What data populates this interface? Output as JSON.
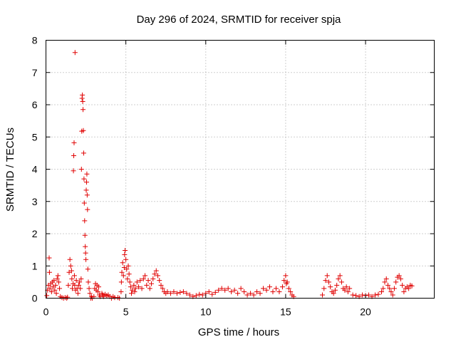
{
  "chart_data": {
    "type": "scatter",
    "title": "Day 296 of 2024, SRMTID for receiver spja",
    "xlabel": "GPS time / hours",
    "ylabel": "SRMTID / TECUs",
    "xlim": [
      0,
      24.3
    ],
    "ylim": [
      0,
      8
    ],
    "xticks": [
      0,
      5,
      10,
      15,
      20
    ],
    "xtick_labels": [
      "0",
      "5",
      "10",
      "15",
      "20"
    ],
    "yticks": [
      0,
      1,
      2,
      3,
      4,
      5,
      6,
      7,
      8
    ],
    "ytick_labels": [
      "0",
      "1",
      "2",
      "3",
      "4",
      "5",
      "6",
      "7",
      "8"
    ],
    "grid": true,
    "marker": "+",
    "color": "#e00000",
    "series": [
      {
        "name": "SRMTID",
        "points": [
          [
            0.05,
            0.08
          ],
          [
            0.1,
            0.25
          ],
          [
            0.15,
            0.4
          ],
          [
            0.2,
            1.25
          ],
          [
            0.22,
            0.8
          ],
          [
            0.25,
            0.3
          ],
          [
            0.3,
            0.45
          ],
          [
            0.35,
            0.2
          ],
          [
            0.4,
            0.5
          ],
          [
            0.45,
            0.35
          ],
          [
            0.5,
            0.55
          ],
          [
            0.55,
            0.25
          ],
          [
            0.6,
            0.4
          ],
          [
            0.65,
            0.15
          ],
          [
            0.7,
            0.6
          ],
          [
            0.75,
            0.7
          ],
          [
            0.8,
            0.5
          ],
          [
            0.85,
            0.3
          ],
          [
            0.9,
            0.05
          ],
          [
            1.0,
            0.02
          ],
          [
            1.1,
            0.0
          ],
          [
            1.2,
            0.02
          ],
          [
            1.3,
            0.0
          ],
          [
            1.35,
            0.03
          ],
          [
            1.4,
            0.4
          ],
          [
            1.45,
            0.8
          ],
          [
            1.5,
            1.2
          ],
          [
            1.55,
            1.0
          ],
          [
            1.6,
            0.85
          ],
          [
            1.62,
            0.6
          ],
          [
            1.65,
            0.3
          ],
          [
            1.7,
            0.45
          ],
          [
            1.72,
            3.95
          ],
          [
            1.74,
            4.42
          ],
          [
            1.76,
            4.82
          ],
          [
            1.78,
            0.7
          ],
          [
            1.8,
            0.4
          ],
          [
            1.82,
            7.62
          ],
          [
            1.85,
            0.25
          ],
          [
            1.9,
            0.55
          ],
          [
            1.95,
            0.3
          ],
          [
            2.0,
            0.15
          ],
          [
            2.05,
            0.4
          ],
          [
            2.1,
            0.5
          ],
          [
            2.15,
            0.3
          ],
          [
            2.2,
            0.6
          ],
          [
            2.22,
            4.0
          ],
          [
            2.24,
            5.18
          ],
          [
            2.26,
            6.2
          ],
          [
            2.28,
            6.3
          ],
          [
            2.3,
            6.1
          ],
          [
            2.32,
            5.85
          ],
          [
            2.34,
            5.2
          ],
          [
            2.36,
            4.5
          ],
          [
            2.38,
            3.7
          ],
          [
            2.4,
            2.95
          ],
          [
            2.42,
            2.4
          ],
          [
            2.44,
            1.95
          ],
          [
            2.46,
            1.6
          ],
          [
            2.48,
            1.4
          ],
          [
            2.5,
            1.2
          ],
          [
            2.52,
            3.35
          ],
          [
            2.54,
            3.6
          ],
          [
            2.56,
            3.85
          ],
          [
            2.58,
            3.2
          ],
          [
            2.6,
            2.75
          ],
          [
            2.62,
            0.9
          ],
          [
            2.65,
            0.5
          ],
          [
            2.7,
            0.3
          ],
          [
            2.75,
            0.15
          ],
          [
            2.8,
            0.0
          ],
          [
            2.85,
            0.05
          ],
          [
            2.9,
            0.0
          ],
          [
            3.0,
            0.05
          ],
          [
            3.05,
            0.3
          ],
          [
            3.1,
            0.45
          ],
          [
            3.15,
            0.25
          ],
          [
            3.2,
            0.4
          ],
          [
            3.25,
            0.2
          ],
          [
            3.3,
            0.35
          ],
          [
            3.35,
            0.1
          ],
          [
            3.4,
            0.05
          ],
          [
            3.5,
            0.15
          ],
          [
            3.55,
            0.1
          ],
          [
            3.6,
            0.05
          ],
          [
            3.7,
            0.12
          ],
          [
            3.8,
            0.08
          ],
          [
            3.9,
            0.1
          ],
          [
            4.0,
            0.05
          ],
          [
            4.1,
            0.0
          ],
          [
            4.2,
            0.05
          ],
          [
            4.3,
            0.02
          ],
          [
            4.5,
            0.02
          ],
          [
            4.6,
            0.0
          ],
          [
            4.7,
            0.2
          ],
          [
            4.72,
            0.5
          ],
          [
            4.75,
            0.8
          ],
          [
            4.8,
            1.1
          ],
          [
            4.85,
            0.7
          ],
          [
            4.9,
            0.95
          ],
          [
            4.92,
            1.35
          ],
          [
            4.95,
            1.48
          ],
          [
            5.0,
            1.2
          ],
          [
            5.05,
            0.9
          ],
          [
            5.1,
            0.6
          ],
          [
            5.15,
            1.0
          ],
          [
            5.2,
            0.75
          ],
          [
            5.25,
            0.5
          ],
          [
            5.3,
            0.35
          ],
          [
            5.35,
            0.15
          ],
          [
            5.4,
            0.25
          ],
          [
            5.5,
            0.4
          ],
          [
            5.55,
            0.2
          ],
          [
            5.6,
            0.3
          ],
          [
            5.7,
            0.5
          ],
          [
            5.8,
            0.35
          ],
          [
            5.9,
            0.55
          ],
          [
            6.0,
            0.3
          ],
          [
            6.1,
            0.6
          ],
          [
            6.2,
            0.7
          ],
          [
            6.3,
            0.4
          ],
          [
            6.4,
            0.55
          ],
          [
            6.5,
            0.3
          ],
          [
            6.6,
            0.45
          ],
          [
            6.7,
            0.6
          ],
          [
            6.8,
            0.75
          ],
          [
            6.9,
            0.85
          ],
          [
            7.0,
            0.7
          ],
          [
            7.1,
            0.55
          ],
          [
            7.2,
            0.4
          ],
          [
            7.3,
            0.3
          ],
          [
            7.4,
            0.2
          ],
          [
            7.5,
            0.15
          ],
          [
            7.6,
            0.2
          ],
          [
            7.8,
            0.15
          ],
          [
            8.0,
            0.2
          ],
          [
            8.2,
            0.15
          ],
          [
            8.4,
            0.18
          ],
          [
            8.6,
            0.2
          ],
          [
            8.8,
            0.15
          ],
          [
            9.0,
            0.1
          ],
          [
            9.2,
            0.05
          ],
          [
            9.4,
            0.08
          ],
          [
            9.6,
            0.12
          ],
          [
            9.8,
            0.1
          ],
          [
            10.0,
            0.15
          ],
          [
            10.2,
            0.2
          ],
          [
            10.4,
            0.12
          ],
          [
            10.6,
            0.18
          ],
          [
            10.8,
            0.25
          ],
          [
            11.0,
            0.3
          ],
          [
            11.2,
            0.25
          ],
          [
            11.4,
            0.3
          ],
          [
            11.6,
            0.2
          ],
          [
            11.8,
            0.25
          ],
          [
            12.0,
            0.15
          ],
          [
            12.2,
            0.3
          ],
          [
            12.4,
            0.2
          ],
          [
            12.6,
            0.1
          ],
          [
            12.8,
            0.15
          ],
          [
            13.0,
            0.1
          ],
          [
            13.2,
            0.2
          ],
          [
            13.4,
            0.15
          ],
          [
            13.6,
            0.3
          ],
          [
            13.8,
            0.25
          ],
          [
            14.0,
            0.35
          ],
          [
            14.2,
            0.2
          ],
          [
            14.4,
            0.3
          ],
          [
            14.6,
            0.2
          ],
          [
            14.8,
            0.35
          ],
          [
            14.9,
            0.55
          ],
          [
            15.0,
            0.7
          ],
          [
            15.05,
            0.45
          ],
          [
            15.1,
            0.5
          ],
          [
            15.2,
            0.3
          ],
          [
            15.3,
            0.2
          ],
          [
            15.4,
            0.1
          ],
          [
            15.5,
            0.05
          ],
          [
            17.3,
            0.1
          ],
          [
            17.4,
            0.3
          ],
          [
            17.5,
            0.55
          ],
          [
            17.6,
            0.7
          ],
          [
            17.7,
            0.5
          ],
          [
            17.8,
            0.35
          ],
          [
            17.9,
            0.2
          ],
          [
            18.0,
            0.15
          ],
          [
            18.1,
            0.25
          ],
          [
            18.2,
            0.4
          ],
          [
            18.3,
            0.6
          ],
          [
            18.4,
            0.7
          ],
          [
            18.5,
            0.5
          ],
          [
            18.6,
            0.3
          ],
          [
            18.7,
            0.25
          ],
          [
            18.8,
            0.35
          ],
          [
            18.9,
            0.2
          ],
          [
            19.0,
            0.3
          ],
          [
            19.2,
            0.1
          ],
          [
            19.4,
            0.08
          ],
          [
            19.6,
            0.05
          ],
          [
            19.8,
            0.1
          ],
          [
            20.0,
            0.08
          ],
          [
            20.2,
            0.1
          ],
          [
            20.4,
            0.05
          ],
          [
            20.6,
            0.1
          ],
          [
            20.8,
            0.12
          ],
          [
            21.0,
            0.2
          ],
          [
            21.1,
            0.3
          ],
          [
            21.2,
            0.5
          ],
          [
            21.3,
            0.6
          ],
          [
            21.4,
            0.4
          ],
          [
            21.5,
            0.3
          ],
          [
            21.6,
            0.2
          ],
          [
            21.7,
            0.1
          ],
          [
            21.8,
            0.3
          ],
          [
            21.9,
            0.5
          ],
          [
            22.0,
            0.65
          ],
          [
            22.1,
            0.7
          ],
          [
            22.2,
            0.6
          ],
          [
            22.3,
            0.4
          ],
          [
            22.4,
            0.2
          ],
          [
            22.5,
            0.3
          ],
          [
            22.6,
            0.35
          ],
          [
            22.7,
            0.3
          ],
          [
            22.8,
            0.4
          ],
          [
            22.9,
            0.38
          ]
        ]
      }
    ]
  }
}
